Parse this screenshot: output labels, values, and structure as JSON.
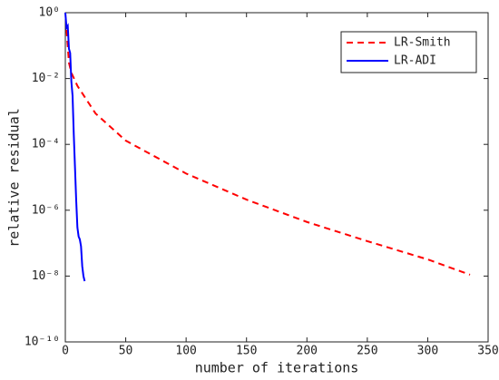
{
  "chart_data": {
    "type": "line",
    "x_label": "number of iterations",
    "y_label": "relative residual",
    "xlim": [
      0,
      350
    ],
    "xticks": [
      0,
      50,
      100,
      150,
      200,
      250,
      300,
      350
    ],
    "ylim": [
      1e-10,
      1
    ],
    "log_y": true,
    "yticks": [
      {
        "value": 1,
        "label": "10⁰"
      },
      {
        "value": 0.01,
        "label": "10⁻²"
      },
      {
        "value": 0.0001,
        "label": "10⁻⁴"
      },
      {
        "value": 1e-06,
        "label": "10⁻⁶"
      },
      {
        "value": 1e-08,
        "label": "10⁻⁸"
      },
      {
        "value": 1e-10,
        "label": "10⁻¹⁰"
      }
    ],
    "legend": "upper right",
    "series": [
      {
        "name": "LR-Smith",
        "color": "#ff0000",
        "dash": true,
        "x": [
          1,
          3,
          5,
          10,
          25,
          50,
          100,
          150,
          200,
          250,
          300,
          335
        ],
        "values": [
          0.3,
          0.03,
          0.015,
          0.006,
          0.00087,
          0.00013,
          1.3e-05,
          2.1e-06,
          4.4e-07,
          1.15e-07,
          3.2e-08,
          1.1e-08
        ]
      },
      {
        "name": "LR-ADI",
        "color": "#0000ff",
        "dash": false,
        "x": [
          0,
          1,
          2,
          3,
          4,
          5,
          6,
          7,
          8,
          9,
          10,
          11,
          12,
          13,
          14,
          15,
          16
        ],
        "values": [
          1,
          0.35,
          0.4,
          0.08,
          0.06,
          0.008,
          0.003,
          0.0002,
          2e-05,
          2e-06,
          3e-07,
          1.6e-07,
          1.3e-07,
          8e-08,
          2e-08,
          1e-08,
          7e-09
        ]
      }
    ]
  }
}
